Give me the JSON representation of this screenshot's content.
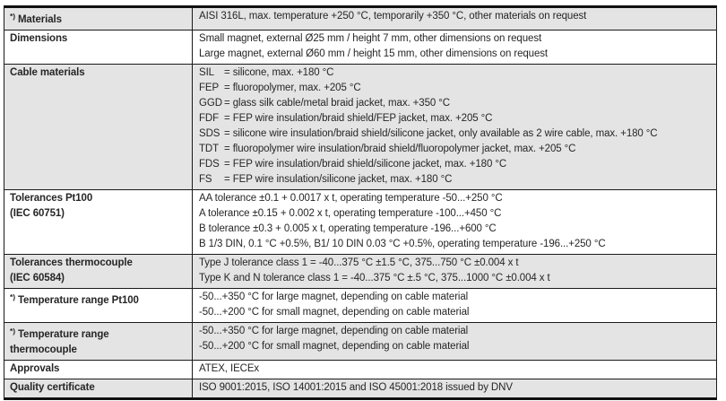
{
  "table": {
    "shade_color": "#e4e4e4",
    "border_color": "#1a1a1a",
    "footnote_marker": "*)",
    "rows": [
      {
        "asterisk": "*)",
        "label_lines": [
          "Materials"
        ],
        "value_lines": [
          "AISI 316L, max. temperature +250 °C, temporarily +350 °C, other materials on request"
        ]
      },
      {
        "label_lines": [
          "Dimensions"
        ],
        "value_lines": [
          "Small magnet, external Ø25 mm / height 7 mm, other dimensions on request",
          "Large magnet, external Ø60 mm / height 15 mm, other dimensions on request"
        ]
      },
      {
        "label_lines": [
          "Cable materials"
        ],
        "cable_codes": [
          {
            "code": "SIL",
            "desc": "= silicone, max. +180 °C"
          },
          {
            "code": "FEP",
            "desc": "= fluoropolymer, max. +205 °C"
          },
          {
            "code": "GGD",
            "desc": "= glass silk cable/metal braid jacket, max. +350 °C"
          },
          {
            "code": "FDF",
            "desc": "= FEP wire insulation/braid shield/FEP jacket, max. +205 °C"
          },
          {
            "code": "SDS",
            "desc": "= silicone wire insulation/braid shield/silicone jacket, only available as 2 wire cable, max. +180 °C"
          },
          {
            "code": "TDT",
            "desc": "= fluoropolymer wire insulation/braid shield/fluoropolymer jacket, max. +205 °C"
          },
          {
            "code": "FDS",
            "desc": "= FEP wire insulation/braid shield/silicone jacket, max. +180 °C"
          },
          {
            "code": "FS",
            "desc": "= FEP wire insulation/silicone jacket, max. +180 °C"
          }
        ]
      },
      {
        "label_lines": [
          "Tolerances Pt100",
          "(IEC 60751)"
        ],
        "value_lines": [
          "AA tolerance ±0.1 + 0.0017 x t, operating temperature -50...+250 °C",
          "A tolerance ±0.15 + 0.002 x t, operating temperature -100...+450 °C",
          "B tolerance ±0.3 + 0.005 x t, operating temperature -196...+600 °C",
          "B 1/3 DIN, 0.1 °C  +0.5%, B1/ 10 DIN 0.03 °C +0.5%, operating temperature -196...+250 °C"
        ]
      },
      {
        "label_lines": [
          "Tolerances thermocouple",
          "(IEC 60584)"
        ],
        "value_lines": [
          "Type J tolerance class 1 = -40...375 °C ±1.5 °C, 375...750 °C ±0.004 x t",
          "Type K and N tolerance class 1 = -40...375 °C ±.5 °C, 375...1000 °C ±0.004 x t"
        ]
      },
      {
        "asterisk": "*)",
        "label_lines": [
          "Temperature range Pt100"
        ],
        "value_lines": [
          "-50...+350 °C for large magnet, depending on cable material",
          "-50...+200 °C for small magnet, depending on cable material"
        ]
      },
      {
        "asterisk": "*)",
        "label_lines": [
          "Temperature range",
          "thermocouple"
        ],
        "value_lines": [
          "-50...+350 °C for large magnet, depending on cable material",
          "-50...+200 °C for small magnet, depending on cable material"
        ]
      },
      {
        "label_lines": [
          "Approvals"
        ],
        "value_lines": [
          "ATEX, IECEx"
        ]
      },
      {
        "label_lines": [
          "Quality certificate"
        ],
        "value_lines": [
          "ISO 9001:2015, ISO 14001:2015 and ISO 45001:2018 issued by DNV"
        ]
      }
    ]
  }
}
